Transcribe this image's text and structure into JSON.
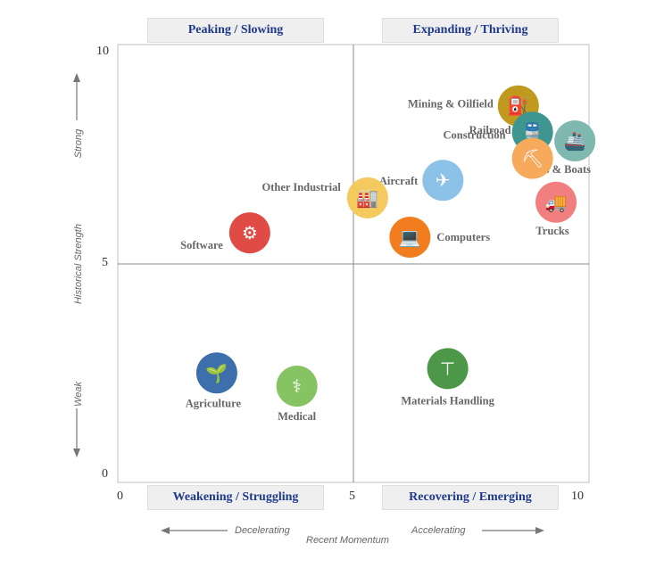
{
  "quadrants": {
    "top_left": "Peaking / Slowing",
    "top_right": "Expanding / Thriving",
    "bottom_left": "Weakening / Struggling",
    "bottom_right": "Recovering / Emerging"
  },
  "axes": {
    "x_ticks": [
      "0",
      "5",
      "10"
    ],
    "y_ticks": [
      "10",
      "5",
      "0"
    ],
    "x_title": "Recent Momentum",
    "x_left": "Decelerating",
    "x_right": "Accelerating",
    "y_title": "Historical Strength",
    "y_top": "Strong",
    "y_bottom": "Weak"
  },
  "chart_data": {
    "type": "scatter",
    "xlim": [
      0,
      10
    ],
    "ylim": [
      0,
      10
    ],
    "xlabel": "Recent Momentum",
    "ylabel": "Historical Strength",
    "points": [
      {
        "label": "Mining & Oilfield",
        "x": 8.5,
        "y": 8.6,
        "color": "#c09a1e",
        "icon": "oil-pump-icon"
      },
      {
        "label": "Railroad",
        "x": 8.8,
        "y": 8.0,
        "color": "#3f9590",
        "icon": "train-icon"
      },
      {
        "label": "Ships & Boats",
        "x": 9.7,
        "y": 7.8,
        "color": "#7fb8ae",
        "icon": "ship-icon"
      },
      {
        "label": "Construction",
        "x": 8.8,
        "y": 7.4,
        "color": "#f7a95c",
        "icon": "worker-icon"
      },
      {
        "label": "Aircraft",
        "x": 6.9,
        "y": 6.9,
        "color": "#8cc2e8",
        "icon": "airplane-icon"
      },
      {
        "label": "Trucks",
        "x": 9.3,
        "y": 6.4,
        "color": "#f27f7f",
        "icon": "truck-icon"
      },
      {
        "label": "Other Industrial",
        "x": 5.3,
        "y": 6.5,
        "color": "#f4c95d",
        "icon": "factory-icon"
      },
      {
        "label": "Computers",
        "x": 6.2,
        "y": 5.6,
        "color": "#f27d1f",
        "icon": "laptop-icon"
      },
      {
        "label": "Software",
        "x": 2.8,
        "y": 5.7,
        "color": "#e04b46",
        "icon": "tablet-gears-icon"
      },
      {
        "label": "Agriculture",
        "x": 2.1,
        "y": 2.5,
        "color": "#3d6fad",
        "icon": "sprout-icon"
      },
      {
        "label": "Medical",
        "x": 3.8,
        "y": 2.2,
        "color": "#86c463",
        "icon": "caduceus-icon"
      },
      {
        "label": "Materials Handling",
        "x": 7.0,
        "y": 2.6,
        "color": "#4d9848",
        "icon": "crane-icon"
      }
    ]
  }
}
